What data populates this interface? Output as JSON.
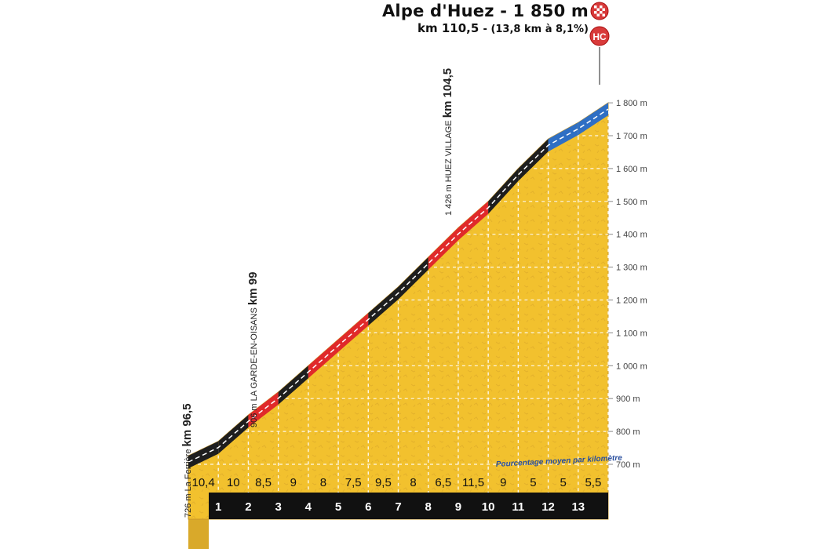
{
  "summit": {
    "name": "Alpe d'Huez",
    "altitude": "1 850 m",
    "km": "km 110,5",
    "detail": "(13,8 km à 8,1%)",
    "category": "HC"
  },
  "waypoints": [
    {
      "altitude": "726 m",
      "name": "La Ferrière",
      "km": "km 96,5"
    },
    {
      "altitude": "906 m",
      "name": "LA GARDE-EN-OISANS",
      "km": "km 99"
    },
    {
      "altitude": "1 426 m",
      "name": "HUEZ VILLAGE",
      "km": "km 104,5"
    }
  ],
  "note": "Pourcentage moyen par kilomètre",
  "colors": {
    "fill": "#f2c12e",
    "grade_low": "#1e1e1e",
    "grade_mid": "#e02a2a",
    "grade_top": "#2f6fc4",
    "base_band": "#111111",
    "pedestal": "#d9a92a"
  },
  "chart_data": {
    "type": "area",
    "title": "Alpe d'Huez - 1 850 m",
    "subtitle": "km 110,5 - (13,8 km à 8,1%)",
    "xlabel": "",
    "ylabel": "",
    "ylim": [
      680,
      1850
    ],
    "y_ticks": [
      "700 m",
      "800 m",
      "900 m",
      "1 000 m",
      "1 100 m",
      "1 200 m",
      "1 300 m",
      "1 400 m",
      "1 500 m",
      "1 600 m",
      "1 700 m",
      "1 800 m"
    ],
    "y_tick_values": [
      700,
      800,
      900,
      1000,
      1100,
      1200,
      1300,
      1400,
      1500,
      1600,
      1700,
      1800
    ],
    "km_labels": [
      "1",
      "2",
      "3",
      "4",
      "5",
      "6",
      "7",
      "8",
      "9",
      "10",
      "11",
      "12",
      "13"
    ],
    "segment_gradients": [
      "10,4",
      "10",
      "8,5",
      "9",
      "8",
      "7,5",
      "9,5",
      "8",
      "6,5",
      "11,5",
      "9",
      "5",
      "5",
      "5,5"
    ],
    "profile_altitude": [
      726,
      770,
      850,
      920,
      1000,
      1080,
      1160,
      1240,
      1330,
      1420,
      1500,
      1600,
      1690,
      1740,
      1800
    ],
    "grade_class": [
      "low",
      "low",
      "mid",
      "low",
      "mid",
      "mid",
      "low",
      "low",
      "mid",
      "mid",
      "low",
      "low",
      "top",
      "top"
    ],
    "grid": true
  }
}
